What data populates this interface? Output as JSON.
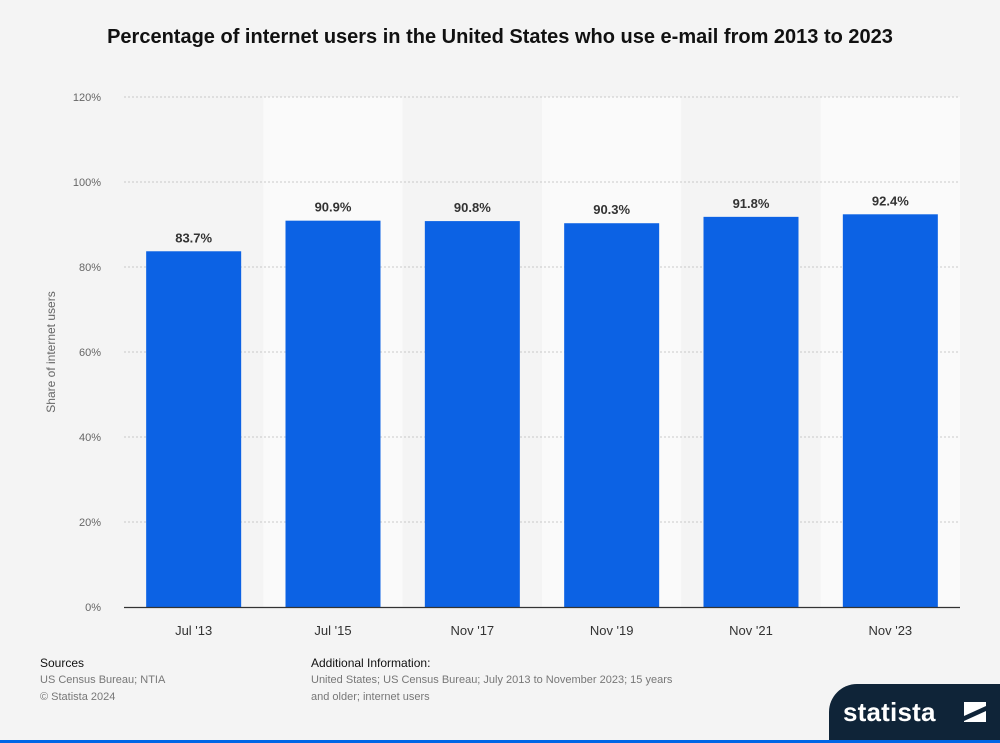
{
  "title": "Percentage of internet users in the United States who use e-mail from 2013 to 2023",
  "chart_data": {
    "type": "bar",
    "categories": [
      "Jul '13",
      "Jul '15",
      "Nov '17",
      "Nov '19",
      "Nov '21",
      "Nov '23"
    ],
    "values": [
      83.7,
      90.9,
      90.8,
      90.3,
      91.8,
      92.4
    ],
    "data_labels": [
      "83.7%",
      "90.9%",
      "90.8%",
      "90.3%",
      "91.8%",
      "92.4%"
    ],
    "ylabel": "Share of internet users",
    "xlabel": "",
    "ylim": [
      0,
      120
    ],
    "yticks": [
      0,
      20,
      40,
      60,
      80,
      100,
      120
    ],
    "ytick_labels": [
      "0%",
      "20%",
      "40%",
      "60%",
      "80%",
      "100%",
      "120%"
    ],
    "grid": true,
    "bar_color": "#0c62e4"
  },
  "footer": {
    "sources_heading": "Sources",
    "sources_lines": [
      "US Census Bureau; NTIA",
      "© Statista 2024"
    ],
    "additional_heading": "Additional Information:",
    "additional_lines": [
      "United States; US Census Bureau; July 2013 to November 2023; 15 years",
      "and older; internet users"
    ]
  },
  "brand": {
    "name": "statista",
    "color": "#0f2438",
    "accent": "#0066e6"
  }
}
